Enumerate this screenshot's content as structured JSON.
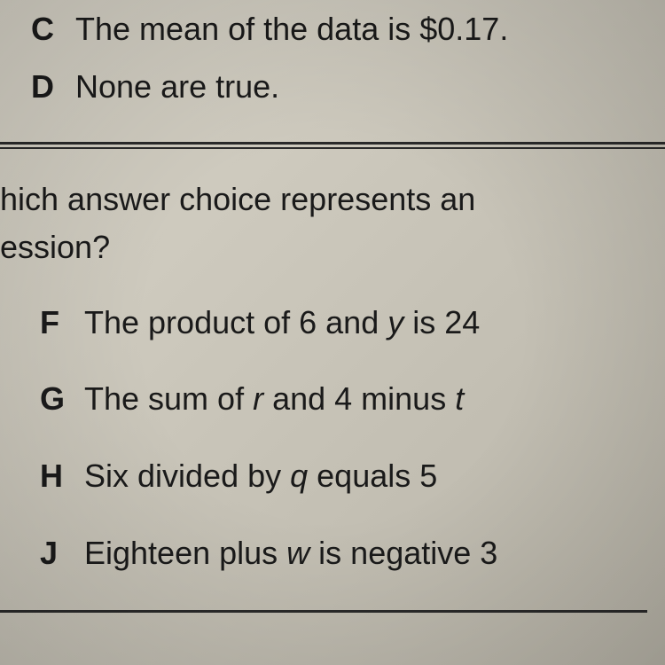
{
  "top_section": {
    "choices": [
      {
        "letter": "C",
        "prefix": "The mean of the data is ",
        "value": "$0.17",
        "suffix": "."
      },
      {
        "letter": "D",
        "text": "None are true."
      }
    ]
  },
  "bottom_section": {
    "question_line1": "hich answer choice represents an",
    "question_line2": "ession?",
    "choices": [
      {
        "letter": "F",
        "parts": [
          "The product of 6 and ",
          "y",
          " is 24"
        ]
      },
      {
        "letter": "G",
        "parts": [
          "The sum of ",
          "r",
          " and 4 minus ",
          "t"
        ]
      },
      {
        "letter": "H",
        "parts": [
          "Six divided by ",
          "q",
          " equals 5"
        ]
      },
      {
        "letter": "J",
        "parts": [
          "Eighteen plus ",
          "w",
          " is negative 3"
        ]
      }
    ]
  },
  "styling": {
    "font_family": "Arial, Helvetica, sans-serif",
    "text_color": "#1a1a1a",
    "background_gradient": [
      "#d8d4c8",
      "#c8c4b8",
      "#b8b4a8"
    ],
    "divider_color": "#2a2a2a",
    "base_fontsize": 36,
    "letter_fontweight": "bold"
  }
}
